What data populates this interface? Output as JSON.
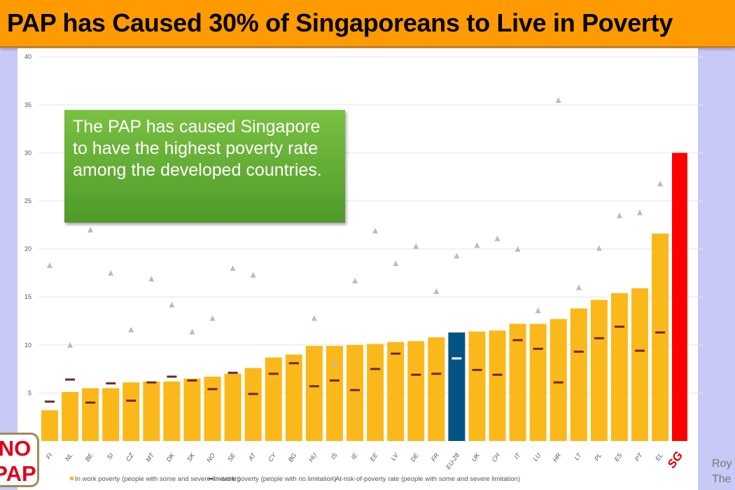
{
  "title": "PAP has Caused 30% of Singaporeans to Live in Poverty",
  "callout": "The PAP has caused Singapore to have the highest poverty rate among the developed countries.",
  "logo_text": [
    "NO",
    "PAP"
  ],
  "credit": [
    "Roy",
    "The H"
  ],
  "colors": {
    "bar": "#fbb81a",
    "eu_bar": "#045385",
    "sg_bar": "#ff0000",
    "dash": "#6b2a2a",
    "triangle": "#bbbbbb",
    "header": "#ff9b00",
    "callout": "#5fa834"
  },
  "chart_data": {
    "type": "bar",
    "ylim": [
      0,
      40
    ],
    "yticks": [
      5,
      10,
      15,
      20,
      25,
      30,
      35,
      40
    ],
    "grid": true,
    "legend_placement": "bottom",
    "categories": [
      "FI",
      "NL",
      "BE",
      "SI",
      "CZ",
      "MT",
      "DK",
      "SK",
      "NO",
      "SE",
      "AT",
      "CY",
      "BG",
      "HU",
      "IS",
      "IE",
      "EE",
      "LV",
      "DE",
      "FR",
      "EU-28",
      "UK",
      "CH",
      "IT",
      "LU",
      "HR",
      "LT",
      "PL",
      "ES",
      "PT",
      "EL",
      "SG"
    ],
    "series": [
      {
        "name": "In work poverty (people with some and severe limitation)",
        "type": "bar",
        "values": [
          3.2,
          5.1,
          5.5,
          5.5,
          6.1,
          6.2,
          6.2,
          6.5,
          6.7,
          7.0,
          7.6,
          8.7,
          9.0,
          9.9,
          9.9,
          10.0,
          10.1,
          10.3,
          10.4,
          10.8,
          11.3,
          11.4,
          11.5,
          12.2,
          12.2,
          12.7,
          13.8,
          14.7,
          15.4,
          15.9,
          21.6,
          30.0
        ]
      },
      {
        "name": "In-work poverty (people with no limitation)",
        "type": "dash",
        "values": [
          4.1,
          6.4,
          4.0,
          6.0,
          4.2,
          6.1,
          6.7,
          6.3,
          5.4,
          7.1,
          4.9,
          7.0,
          8.1,
          5.7,
          6.3,
          5.3,
          7.5,
          9.1,
          6.9,
          7.0,
          8.6,
          7.4,
          6.9,
          10.5,
          9.6,
          6.1,
          9.3,
          10.7,
          11.9,
          9.4,
          11.3,
          null
        ]
      },
      {
        "name": "At-risk-of-poverty rate (people with some and severe limitation)",
        "type": "triangle",
        "values": [
          18.3,
          10.0,
          22.0,
          17.5,
          11.6,
          16.9,
          14.2,
          11.4,
          12.8,
          18.0,
          17.3,
          null,
          null,
          12.8,
          8.2,
          16.7,
          21.9,
          18.5,
          20.3,
          15.6,
          19.3,
          20.4,
          21.1,
          20.0,
          13.6,
          35.5,
          16.0,
          20.1,
          23.5,
          23.8,
          26.8,
          null
        ]
      }
    ]
  }
}
